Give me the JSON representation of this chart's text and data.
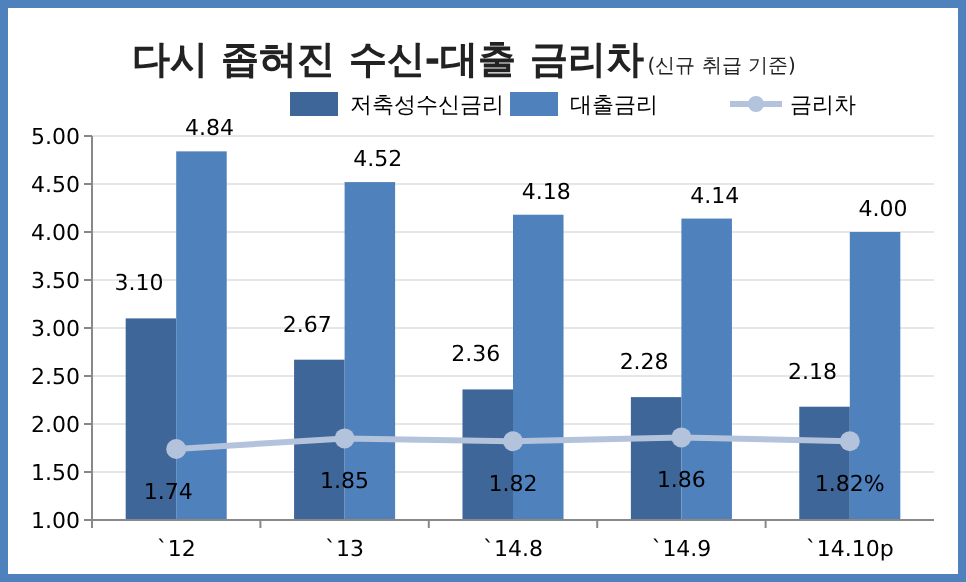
{
  "chart_data": {
    "type": "bar",
    "title": "다시 좁혀진 수신-대출 금리차",
    "subtitle": "(신규 취급 기준)",
    "categories": [
      "`12",
      "`13",
      "`14.8",
      "`14.9",
      "`14.10p"
    ],
    "series": [
      {
        "name": "저축성수신금리",
        "color": "#3e6699",
        "values": [
          3.1,
          2.67,
          2.36,
          2.28,
          2.18
        ],
        "value_labels": [
          "3.10",
          "2.67",
          "2.36",
          "2.28",
          "2.18"
        ]
      },
      {
        "name": "대출금리",
        "color": "#4f81bd",
        "values": [
          4.84,
          4.52,
          4.18,
          4.14,
          4.0
        ],
        "value_labels": [
          "4.84",
          "4.52",
          "4.18",
          "4.14",
          "4.00"
        ]
      },
      {
        "name": "금리차",
        "type": "line",
        "color": "#b4c3dc",
        "marker": "circle",
        "values": [
          1.74,
          1.85,
          1.82,
          1.86,
          1.82
        ],
        "value_labels": [
          "1.74",
          "1.85",
          "1.82",
          "1.86",
          "1.82%"
        ]
      }
    ],
    "ylim": [
      1,
      5
    ],
    "yticks": [
      {
        "value": 1,
        "label": "1.00"
      },
      {
        "value": 1.5,
        "label": "1.50"
      },
      {
        "value": 2,
        "label": "2.00"
      },
      {
        "value": 2.5,
        "label": "2.50"
      },
      {
        "value": 3,
        "label": "3.00"
      },
      {
        "value": 3.5,
        "label": "3.50"
      },
      {
        "value": 4,
        "label": "4.00"
      },
      {
        "value": 4.5,
        "label": "4.50"
      },
      {
        "value": 5,
        "label": "5.00"
      }
    ],
    "grid": "y",
    "legend": "top right"
  }
}
